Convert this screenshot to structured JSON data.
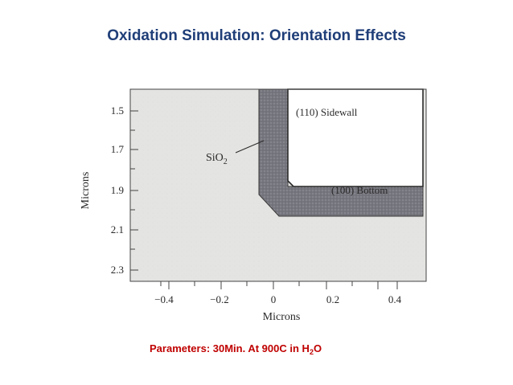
{
  "slide": {
    "title": "Oxidation Simulation: Orientation Effects",
    "caption": {
      "prefix": "Parameters: 30Min. At 900C in H",
      "subscript": "2",
      "suffix": "O"
    }
  },
  "diagram": {
    "y_axis": {
      "label": "Microns",
      "ticks": [
        "1.5",
        "1.7",
        "1.9",
        "2.1",
        "2.3"
      ]
    },
    "x_axis": {
      "label": "Microns",
      "ticks": [
        "−0.4",
        "−0.2",
        "0",
        "0.2",
        "0.4"
      ]
    },
    "labels": {
      "sidewall": "(110) Sidewall",
      "bottom": "(100) Bottom",
      "oxide_main": "SiO",
      "oxide_sub": "2"
    },
    "colors": {
      "substrate": "#e4e4e2",
      "oxide": "#76767e",
      "trench": "#ffffff",
      "ink": "#2a2a2a"
    }
  }
}
